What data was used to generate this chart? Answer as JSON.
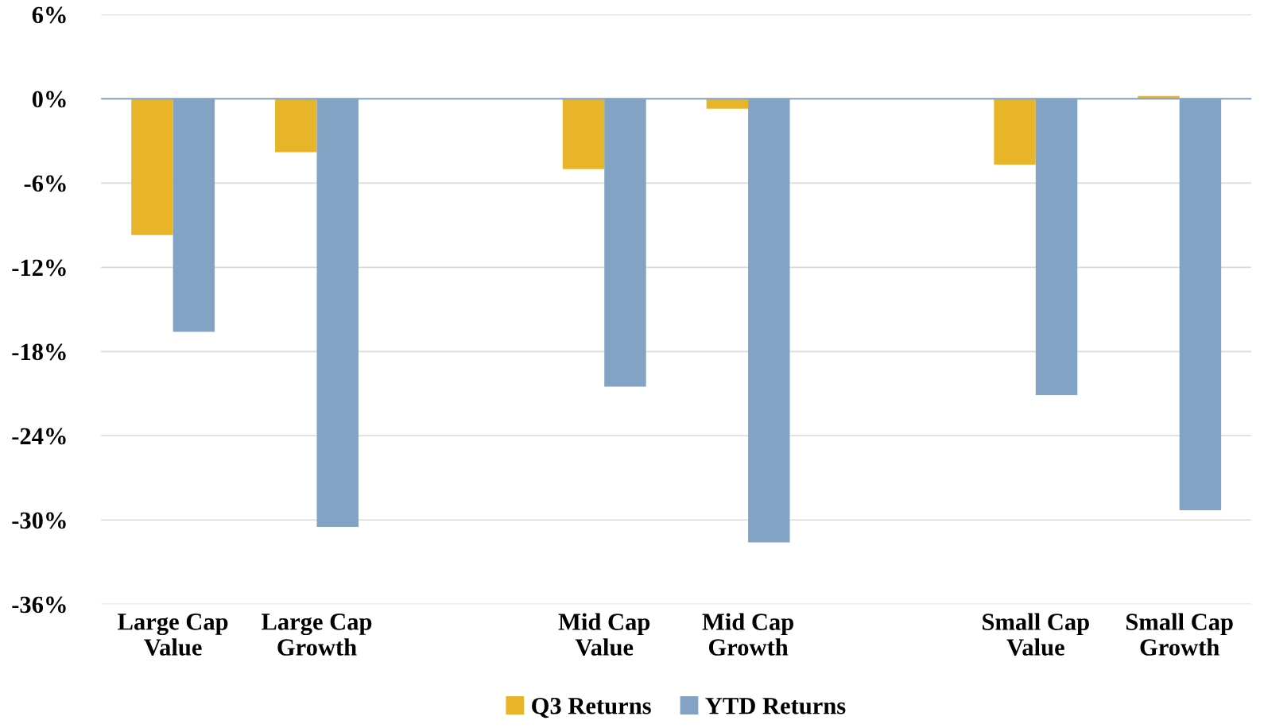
{
  "chart_data": {
    "type": "bar",
    "categories": [
      "Large Cap\nValue",
      "Large Cap\nGrowth",
      null,
      "Mid Cap\nValue",
      "Mid Cap\nGrowth",
      null,
      "Small Cap\nValue",
      "Small Cap\nGrowth"
    ],
    "series": [
      {
        "name": "Q3 Returns",
        "color": "#e8b52a",
        "values": [
          -9.7,
          -3.8,
          null,
          -5.0,
          -0.7,
          null,
          -4.7,
          0.2
        ]
      },
      {
        "name": "YTD Returns",
        "color": "#83a3c4",
        "values": [
          -16.6,
          -30.5,
          null,
          -20.5,
          -31.6,
          null,
          -21.1,
          -29.3
        ]
      }
    ],
    "ylim": [
      -36,
      6
    ],
    "yticks": [
      {
        "value": 6,
        "label": "6%"
      },
      {
        "value": 0,
        "label": "0%"
      },
      {
        "value": -6,
        "label": "-6%"
      },
      {
        "value": -12,
        "label": "-12%"
      },
      {
        "value": -18,
        "label": "-18%"
      },
      {
        "value": -24,
        "label": "-24%"
      },
      {
        "value": -30,
        "label": "-30%"
      },
      {
        "value": -36,
        "label": "-36%"
      }
    ],
    "ref_lines": [
      {
        "axis": "y",
        "value": 0,
        "color": "#83a3c4"
      }
    ],
    "grid": "y",
    "legend": "bottom"
  }
}
